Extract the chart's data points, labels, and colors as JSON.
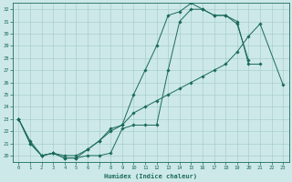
{
  "xlabel": "Humidex (Indice chaleur)",
  "xlim": [
    -0.5,
    23.5
  ],
  "ylim": [
    19.5,
    32.5
  ],
  "yticks": [
    20,
    21,
    22,
    23,
    24,
    25,
    26,
    27,
    28,
    29,
    30,
    31,
    32
  ],
  "xticks": [
    0,
    1,
    2,
    3,
    4,
    5,
    6,
    7,
    8,
    9,
    10,
    11,
    12,
    13,
    14,
    15,
    16,
    17,
    18,
    19,
    20,
    21,
    22,
    23
  ],
  "bg_color": "#cde8e8",
  "grid_color": "#a0c8c8",
  "line_color": "#1a6b5a",
  "line1_x": [
    0,
    1,
    2,
    3,
    4,
    5,
    6,
    7,
    8,
    9,
    10,
    11,
    12,
    13,
    14,
    15,
    16,
    17,
    18,
    19,
    20,
    21
  ],
  "line1_y": [
    23,
    21,
    20,
    20.2,
    19.8,
    19.8,
    20.0,
    20.0,
    20.2,
    22.2,
    22.5,
    22.5,
    22.5,
    27.0,
    31.0,
    32.0,
    32.0,
    31.5,
    31.5,
    31.0,
    27.5,
    27.5
  ],
  "line2_x": [
    0,
    1,
    2,
    3,
    4,
    5,
    6,
    7,
    8,
    9,
    10,
    11,
    12,
    13,
    14,
    15,
    16,
    17,
    18,
    19,
    20
  ],
  "line2_y": [
    23,
    21,
    20,
    20.2,
    19.8,
    19.8,
    20.5,
    21.2,
    22.2,
    22.5,
    25.0,
    27.0,
    29.0,
    31.5,
    31.8,
    32.5,
    32.0,
    31.5,
    31.5,
    30.8,
    27.8
  ],
  "line3_x": [
    0,
    1,
    2,
    3,
    4,
    5,
    6,
    7,
    8,
    9,
    10,
    11,
    12,
    13,
    14,
    15,
    16,
    17,
    18,
    19,
    20,
    21,
    23
  ],
  "line3_y": [
    23,
    21.2,
    20,
    20.2,
    20.0,
    20.0,
    20.5,
    21.2,
    22.0,
    22.5,
    23.5,
    24.0,
    24.5,
    25.0,
    25.5,
    26.0,
    26.5,
    27.0,
    27.5,
    28.5,
    29.8,
    30.8,
    25.8
  ]
}
